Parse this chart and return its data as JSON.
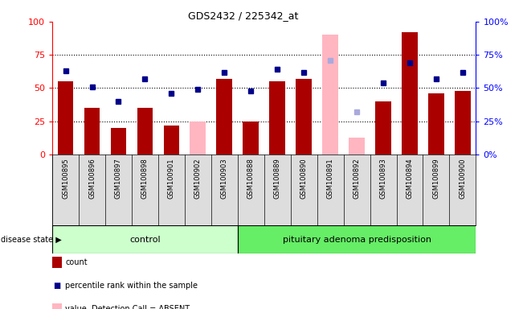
{
  "title": "GDS2432 / 225342_at",
  "samples": [
    "GSM100895",
    "GSM100896",
    "GSM100897",
    "GSM100898",
    "GSM100901",
    "GSM100902",
    "GSM100903",
    "GSM100888",
    "GSM100889",
    "GSM100890",
    "GSM100891",
    "GSM100892",
    "GSM100893",
    "GSM100894",
    "GSM100899",
    "GSM100900"
  ],
  "count_values": [
    55,
    35,
    20,
    35,
    22,
    null,
    57,
    25,
    55,
    57,
    null,
    null,
    40,
    92,
    46,
    48
  ],
  "rank_values": [
    63,
    51,
    40,
    57,
    46,
    49,
    62,
    48,
    64,
    62,
    71,
    32,
    54,
    69,
    57,
    62
  ],
  "absent_count": [
    null,
    null,
    null,
    null,
    null,
    25,
    null,
    null,
    null,
    null,
    90,
    13,
    null,
    null,
    null,
    null
  ],
  "absent_rank": [
    null,
    null,
    null,
    null,
    null,
    null,
    null,
    null,
    null,
    null,
    71,
    32,
    null,
    null,
    null,
    null
  ],
  "n_control": 7,
  "n_disease": 9,
  "control_label": "control",
  "disease_label": "pituitary adenoma predisposition",
  "disease_state_label": "disease state",
  "ylim": [
    0,
    100
  ],
  "bar_color_red": "#AA0000",
  "bar_color_pink": "#FFB6C1",
  "dot_color_blue": "#00008B",
  "dot_color_lightblue": "#AAAADD",
  "control_bg": "#CCFFCC",
  "disease_bg": "#66EE66",
  "yticks": [
    0,
    25,
    50,
    75,
    100
  ],
  "bar_width": 0.6,
  "figsize": [
    6.51,
    3.84
  ],
  "dpi": 100
}
